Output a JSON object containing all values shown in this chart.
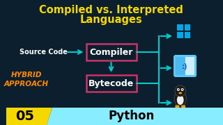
{
  "bg_color": "#0b1f2e",
  "title_line1": "Compiled vs. Interpreted",
  "title_line2": "Languages",
  "title_color": "#f5d800",
  "source_code_text": "Source Code",
  "source_code_color": "#ffffff",
  "hybrid_line1": "HYBRID",
  "hybrid_line2": "APPROACH",
  "hybrid_color": "#ff8800",
  "compiler_text": "Compiler",
  "compiler_box_edge": "#cc3366",
  "compiler_text_color": "#ffffff",
  "bytecode_text": "Bytecode",
  "bytecode_box_edge": "#cc3366",
  "bytecode_text_color": "#ffffff",
  "arrow_color": "#00cccc",
  "bottom_left_num": "05",
  "bottom_left_bg": "#f5d800",
  "bottom_right_text": "Python",
  "bottom_right_bg": "#88eeff",
  "bottom_text_color": "#000000",
  "win_color1": "#00a8e8",
  "win_color2": "#00a8e8",
  "mac_color1": "#4db8ff",
  "mac_color2": "#e8e8e8"
}
